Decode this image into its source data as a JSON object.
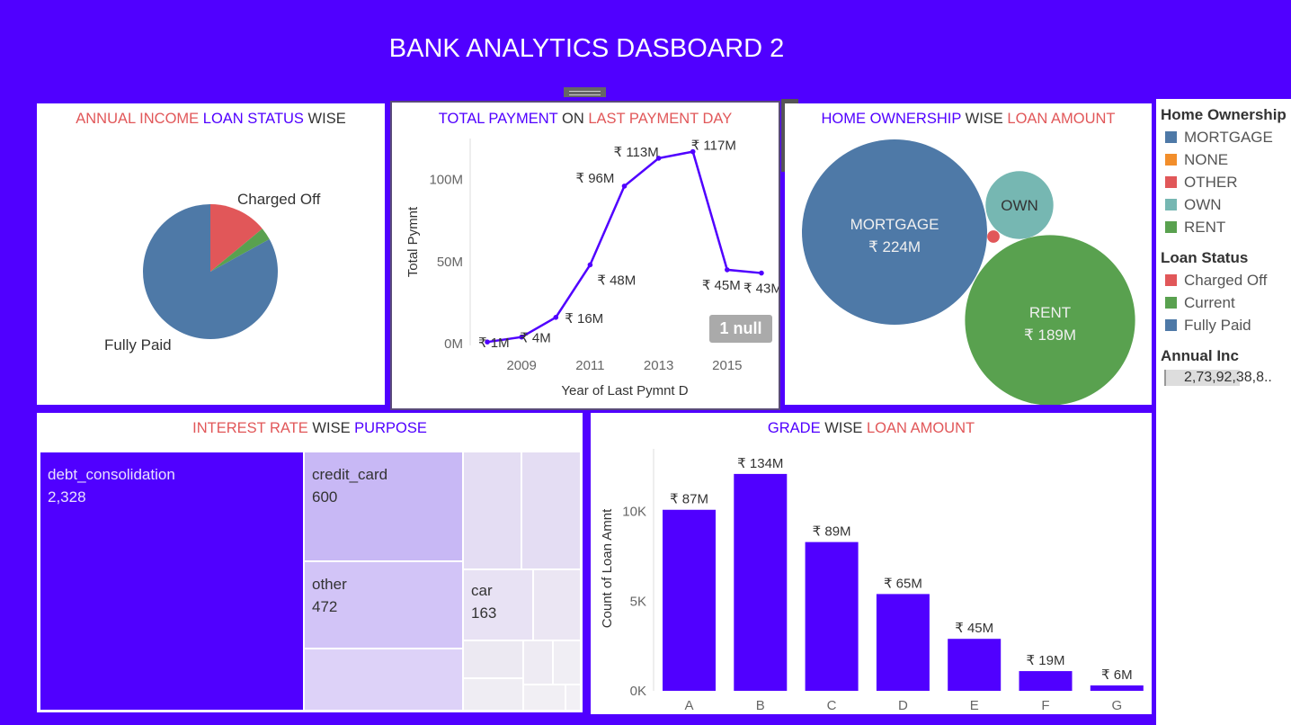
{
  "header": {
    "title": "BANK ANALYTICS DASBOARD 2"
  },
  "panels": {
    "annual_income": {
      "title": [
        "ANNUAL INCOME",
        "LOAN STATUS",
        "WISE"
      ],
      "label_charged_off": "Charged Off",
      "label_fully_paid": "Fully Paid"
    },
    "total_payment": {
      "title": [
        "TOTAL PAYMENT",
        "ON",
        "LAST PAYMENT DAY"
      ],
      "ylabel": "Total Pymnt",
      "xlabel": "Year of Last Pymnt D",
      "null_badge": "1 null"
    },
    "home_ownership": {
      "title": [
        "HOME OWNERSHIP",
        "WISE",
        "LOAN AMOUNT"
      ]
    },
    "interest_rate": {
      "title": [
        "INTEREST RATE",
        "WISE",
        "PURPOSE"
      ]
    },
    "grade": {
      "title": [
        "GRADE",
        "WISE",
        "LOAN AMOUNT"
      ],
      "ylabel": "Count of Loan Amnt"
    }
  },
  "toolbar": {
    "close": "✕",
    "open": "⧉",
    "filter": "⏷",
    "more": "▾"
  },
  "legend": {
    "home_ownership": {
      "title": "Home Ownership",
      "items": [
        {
          "label": "MORTGAGE",
          "color": "#4e79a7"
        },
        {
          "label": "NONE",
          "color": "#f28e2b"
        },
        {
          "label": "OTHER",
          "color": "#e15759"
        },
        {
          "label": "OWN",
          "color": "#76b7b2"
        },
        {
          "label": "RENT",
          "color": "#59a14f"
        }
      ]
    },
    "loan_status": {
      "title": "Loan Status",
      "items": [
        {
          "label": "Charged Off",
          "color": "#e15759"
        },
        {
          "label": "Current",
          "color": "#59a14f"
        },
        {
          "label": "Fully Paid",
          "color": "#4e79a7"
        }
      ]
    },
    "annual_inc": {
      "title": "Annual Inc",
      "value": "2,73,92,38,8.."
    }
  },
  "chart_data": [
    {
      "type": "pie",
      "title": "ANNUAL INCOME LOAN STATUS WISE",
      "slices": [
        {
          "label": "Fully Paid",
          "value": 83,
          "color": "#4e79a7"
        },
        {
          "label": "Charged Off",
          "value": 14,
          "color": "#e15759"
        },
        {
          "label": "Current",
          "value": 3,
          "color": "#59a14f"
        }
      ]
    },
    {
      "type": "line",
      "title": "TOTAL PAYMENT ON LAST PAYMENT DAY",
      "xlabel": "Year of Last Pymnt D",
      "ylabel": "Total Pymnt",
      "x": [
        2008,
        2009,
        2010,
        2011,
        2012,
        2013,
        2014,
        2015,
        2016
      ],
      "values": [
        1,
        4,
        16,
        48,
        96,
        113,
        117,
        45,
        43
      ],
      "data_labels": [
        "₹ 1M",
        "₹ 4M",
        "₹ 16M",
        "₹ 48M",
        "₹ 96M",
        "₹ 113M",
        "₹ 117M",
        "₹ 45M",
        "₹ 43M"
      ],
      "x_ticks": [
        "2009",
        "2011",
        "2013",
        "2015"
      ],
      "y_ticks": [
        "0M",
        "50M",
        "100M"
      ],
      "ylim": [
        0,
        125
      ],
      "color": "#5000ff"
    },
    {
      "type": "bubble",
      "title": "HOME OWNERSHIP WISE LOAN AMOUNT",
      "bubbles": [
        {
          "category": "MORTGAGE",
          "label": "₹ 224M",
          "value": 224,
          "color": "#4e79a7"
        },
        {
          "category": "OWN",
          "label": "",
          "value": 30,
          "color": "#76b7b2"
        },
        {
          "category": "RENT",
          "label": "₹ 189M",
          "value": 189,
          "color": "#59a14f"
        },
        {
          "category": "OTHER",
          "label": "",
          "value": 1,
          "color": "#e15759"
        }
      ]
    },
    {
      "type": "treemap",
      "title": "INTEREST RATE WISE PURPOSE",
      "labeled_cells": [
        {
          "label": "debt_consolidation",
          "value": "2,328"
        },
        {
          "label": "credit_card",
          "value": "600"
        },
        {
          "label": "other",
          "value": "472"
        },
        {
          "label": "car",
          "value": "163"
        }
      ]
    },
    {
      "type": "bar",
      "title": "GRADE WISE LOAN AMOUNT",
      "ylabel": "Count of Loan Amnt",
      "categories": [
        "A",
        "B",
        "C",
        "D",
        "E",
        "F",
        "G"
      ],
      "values": [
        10100,
        12100,
        8300,
        5400,
        2900,
        1100,
        300
      ],
      "data_labels": [
        "₹ 87M",
        "₹ 134M",
        "₹ 89M",
        "₹ 65M",
        "₹ 45M",
        "₹ 19M",
        "₹ 6M"
      ],
      "y_ticks": [
        "0K",
        "5K",
        "10K"
      ],
      "ylim": [
        0,
        13500
      ],
      "color": "#5000ff"
    }
  ]
}
